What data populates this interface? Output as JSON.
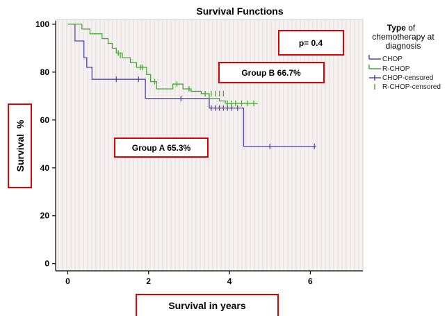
{
  "chart_data": {
    "type": "line",
    "subtype": "kaplan-meier",
    "title": "Survival Functions",
    "xlabel": "Survival in years",
    "ylabel": "Survival  %",
    "xlim": [
      -0.3,
      7.3
    ],
    "ylim": [
      -3,
      102
    ],
    "xticks": [
      0,
      2,
      4,
      6
    ],
    "yticks": [
      0,
      20,
      40,
      60,
      80,
      100
    ],
    "grid": false,
    "legend_position": "right",
    "legend": {
      "title_strong": "Type",
      "title_rest": " of",
      "title_line2": "chemotherapy at",
      "title_line3": "diagnosis",
      "entries": [
        "CHOP",
        "R-CHOP",
        "CHOP-censored",
        "R-CHOP-censored"
      ]
    },
    "colors": {
      "CHOP": "#5544aa",
      "R-CHOP": "#44aa33"
    },
    "series": [
      {
        "name": "CHOP",
        "steps": [
          [
            0,
            100
          ],
          [
            0.18,
            93
          ],
          [
            0.4,
            86
          ],
          [
            0.47,
            82
          ],
          [
            0.6,
            77
          ],
          [
            1.92,
            69
          ],
          [
            3.5,
            65
          ],
          [
            4.35,
            49
          ],
          [
            6.15,
            49
          ]
        ],
        "censored": [
          [
            1.2,
            77
          ],
          [
            1.75,
            77
          ],
          [
            2.8,
            69
          ],
          [
            3.55,
            65
          ],
          [
            3.65,
            65
          ],
          [
            3.75,
            65
          ],
          [
            3.85,
            65
          ],
          [
            3.95,
            65
          ],
          [
            4.05,
            65
          ],
          [
            4.2,
            65
          ],
          [
            5.0,
            49
          ],
          [
            6.1,
            49
          ]
        ]
      },
      {
        "name": "R-CHOP",
        "steps": [
          [
            0,
            100
          ],
          [
            0.35,
            98
          ],
          [
            0.55,
            96
          ],
          [
            0.85,
            94
          ],
          [
            1.0,
            92
          ],
          [
            1.1,
            90
          ],
          [
            1.2,
            88
          ],
          [
            1.35,
            86
          ],
          [
            1.55,
            84
          ],
          [
            1.7,
            82
          ],
          [
            1.95,
            79
          ],
          [
            2.05,
            76
          ],
          [
            2.2,
            73
          ],
          [
            2.6,
            75
          ],
          [
            2.85,
            73
          ],
          [
            3.05,
            72
          ],
          [
            3.3,
            71
          ],
          [
            3.5,
            69
          ],
          [
            3.75,
            68
          ],
          [
            3.9,
            67
          ],
          [
            4.7,
            67
          ]
        ],
        "censored": [
          [
            1.25,
            88
          ],
          [
            1.3,
            87
          ],
          [
            1.8,
            82
          ],
          [
            1.85,
            82
          ],
          [
            2.15,
            76
          ],
          [
            2.7,
            75
          ],
          [
            3.0,
            73
          ],
          [
            3.4,
            71
          ],
          [
            3.55,
            71
          ],
          [
            3.65,
            71
          ],
          [
            3.75,
            71
          ],
          [
            3.85,
            71
          ],
          [
            3.95,
            67
          ],
          [
            4.05,
            67
          ],
          [
            4.15,
            67
          ],
          [
            4.3,
            67
          ],
          [
            4.45,
            67
          ],
          [
            4.6,
            67
          ]
        ]
      }
    ],
    "annotations": {
      "pvalue": "p= 0.4",
      "group_b": "Group B 66.7%",
      "group_a": "Group A 65.3%"
    }
  }
}
